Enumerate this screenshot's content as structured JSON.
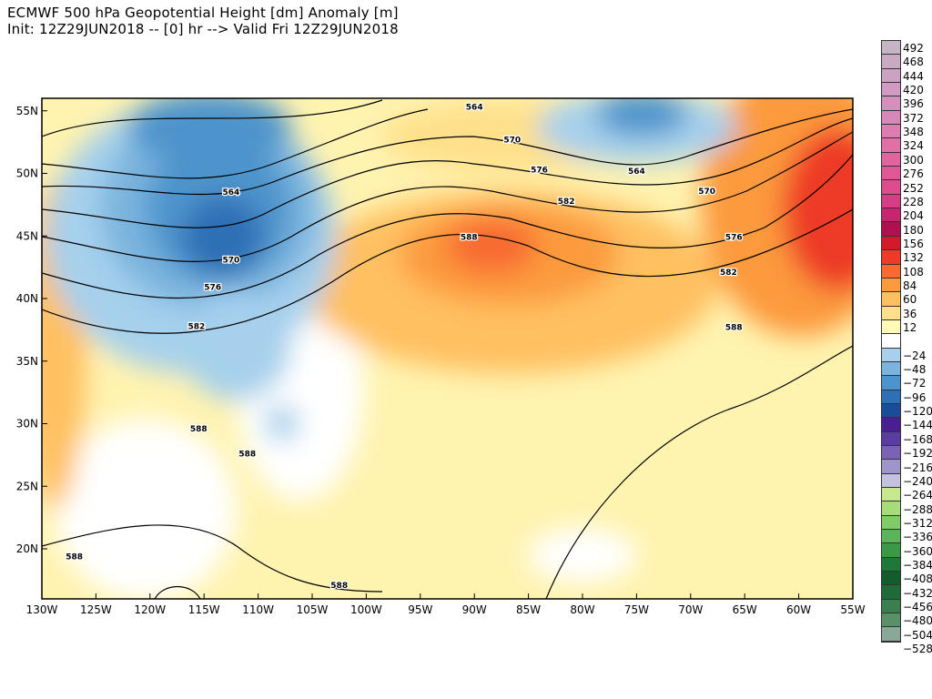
{
  "header": {
    "title": "ECMWF 500 hPa Geopotential Height [dm] Anomaly [m]",
    "subtitle": "Init: 12Z29JUN2018 -- [0] hr --> Valid Fri 12Z29JUN2018"
  },
  "map": {
    "projection": "lat-lon",
    "lon_range": [
      -130,
      -55
    ],
    "lat_range": [
      16,
      56
    ],
    "lon_ticks": [
      "130W",
      "125W",
      "120W",
      "115W",
      "110W",
      "105W",
      "100W",
      "95W",
      "90W",
      "85W",
      "80W",
      "75W",
      "70W",
      "65W",
      "60W",
      "55W"
    ],
    "lat_ticks": [
      "55N",
      "50N",
      "45N",
      "40N",
      "35N",
      "30N",
      "25N",
      "20N"
    ],
    "contour_labels": [
      {
        "text": "564",
        "lon": -112.5,
        "lat": 48.5
      },
      {
        "text": "564",
        "lon": -90,
        "lat": 55.3
      },
      {
        "text": "564",
        "lon": -75,
        "lat": 50.2
      },
      {
        "text": "570",
        "lon": -112.5,
        "lat": 43.1
      },
      {
        "text": "570",
        "lon": -86.5,
        "lat": 52.7
      },
      {
        "text": "570",
        "lon": -68.5,
        "lat": 48.6
      },
      {
        "text": "576",
        "lon": -114.2,
        "lat": 40.9
      },
      {
        "text": "576",
        "lon": -84,
        "lat": 50.3
      },
      {
        "text": "576",
        "lon": -66,
        "lat": 44.9
      },
      {
        "text": "582",
        "lon": -115.7,
        "lat": 37.8
      },
      {
        "text": "582",
        "lon": -81.5,
        "lat": 47.8
      },
      {
        "text": "582",
        "lon": -66.5,
        "lat": 42.1
      },
      {
        "text": "588",
        "lon": -90.5,
        "lat": 44.9
      },
      {
        "text": "588",
        "lon": -66,
        "lat": 37.7
      },
      {
        "text": "588",
        "lon": -115.5,
        "lat": 29.6
      },
      {
        "text": "588",
        "lon": -111,
        "lat": 27.6
      },
      {
        "text": "588",
        "lon": -127,
        "lat": 19.4
      },
      {
        "text": "588",
        "lon": -102.5,
        "lat": 17.1
      }
    ]
  },
  "colorbar": {
    "labels": [
      "492",
      "468",
      "444",
      "420",
      "396",
      "372",
      "348",
      "324",
      "300",
      "276",
      "252",
      "228",
      "204",
      "180",
      "156",
      "132",
      "108",
      "84",
      "60",
      "36",
      "12",
      "−24",
      "−48",
      "−72",
      "−96",
      "−120",
      "−144",
      "−168",
      "−192",
      "−216",
      "−240",
      "−264",
      "−288",
      "−312",
      "−336",
      "−360",
      "−384",
      "−408",
      "−432",
      "−456",
      "−480",
      "−504",
      "−528"
    ],
    "colors": [
      "#c4b4c4",
      "#c8aac4",
      "#cca2c4",
      "#d09ac2",
      "#d490bc",
      "#d888b8",
      "#dc7cb0",
      "#e070a8",
      "#e064a0",
      "#e05898",
      "#de4c90",
      "#d83c84",
      "#c82470",
      "#b01050",
      "#d21a2a",
      "#ee3a26",
      "#f86a30",
      "#fc9a3e",
      "#ffc060",
      "#ffe08a",
      "#fffab8",
      "#ffffff",
      "#a6d0ec",
      "#7ab4de",
      "#4e94cc",
      "#2e70b6",
      "#1a4c98",
      "#4a2090",
      "#5c3ca0",
      "#7a62b4",
      "#a094cc",
      "#c4c0e0",
      "#c8e890",
      "#a6dc7a",
      "#80cc68",
      "#5ab458",
      "#3a9846",
      "#1e7838",
      "#105e2c",
      "#1e6a38",
      "#3c7e50",
      "#5a9068",
      "#8aa898"
    ]
  },
  "colors": {
    "land_border": "#000000",
    "lakes": "#808080",
    "contour": "#000000"
  }
}
